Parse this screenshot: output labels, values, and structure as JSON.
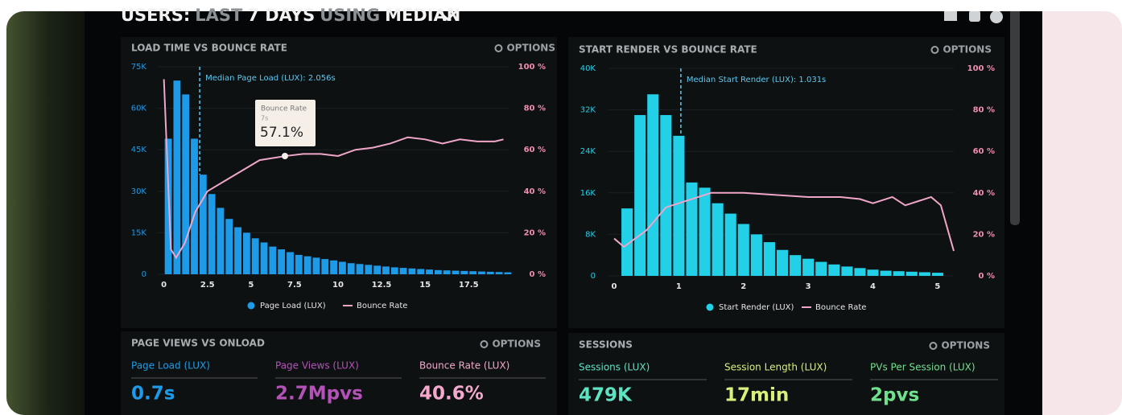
{
  "header": {
    "title": [
      "USERS:",
      "LAST",
      "7 DAYS",
      "USING",
      "MEDIAN"
    ]
  },
  "options": [
    "OPTIONS",
    "OPTIONS",
    "OPTIONS",
    "OPTIONS"
  ],
  "chart_data": [
    {
      "type": "histogram",
      "title": "LOAD TIME VS BOUNCE RATE",
      "bins": [
        0,
        0.5,
        1,
        1.5,
        2,
        2.5,
        3,
        3.5,
        4,
        4.5,
        5,
        5.5,
        6,
        6.5,
        7,
        7.5,
        8,
        8.5,
        9,
        9.5,
        10,
        10.5,
        11,
        11.5,
        12,
        12.5,
        13,
        13.5,
        14,
        14.5,
        15,
        15.5,
        16,
        16.5,
        17,
        17.5,
        18,
        18.5,
        19,
        19.5,
        20
      ],
      "series": [
        {
          "name": "Page Load (LUX)",
          "color": "#1e9be8",
          "values": [
            49000,
            70000,
            65000,
            49000,
            36000,
            29000,
            24000,
            20000,
            17000,
            15000,
            13000,
            11500,
            10000,
            9000,
            8000,
            7000,
            6500,
            6000,
            5500,
            5000,
            4500,
            4000,
            3700,
            3400,
            3100,
            2800,
            2500,
            2300,
            2100,
            1900,
            1700,
            1500,
            1400,
            1300,
            1200,
            1100,
            1000,
            900,
            800,
            700
          ]
        },
        {
          "name": "Bounce Rate",
          "color": "#f0a6c8",
          "axis": "y2",
          "x": [
            0,
            0.4,
            0.7,
            1.2,
            1.8,
            2.5,
            3.5,
            4.5,
            5.5,
            7,
            8,
            9,
            10,
            11,
            12,
            13,
            14,
            15,
            16,
            17,
            18,
            19,
            19.5
          ],
          "values": [
            94,
            12,
            8,
            15,
            30,
            40,
            45,
            50,
            55,
            57,
            58,
            58,
            57,
            60,
            61,
            63,
            66,
            65,
            63,
            65,
            64,
            64,
            65
          ]
        }
      ],
      "xlim": [
        -0.4,
        19.8
      ],
      "xticks": [
        0,
        2.5,
        5,
        7.5,
        10,
        12.5,
        15,
        17.5
      ],
      "ylim": [
        0,
        75000
      ],
      "yticks": [
        {
          "value": 0,
          "label": "0"
        },
        {
          "value": 15000,
          "label": "15K"
        },
        {
          "value": 30000,
          "label": "30K"
        },
        {
          "value": 45000,
          "label": "45K"
        },
        {
          "value": 60000,
          "label": "60K"
        },
        {
          "value": 75000,
          "label": "75K"
        }
      ],
      "y2lim": [
        0,
        100
      ],
      "y2ticks": [
        {
          "value": 0,
          "label": "0 %"
        },
        {
          "value": 20,
          "label": "20 %"
        },
        {
          "value": 40,
          "label": "40 %"
        },
        {
          "value": 60,
          "label": "60 %"
        },
        {
          "value": 80,
          "label": "80 %"
        },
        {
          "value": 100,
          "label": "100 %"
        }
      ],
      "median": 2.056,
      "median_label": "Median Page Load (LUX): 2.056s",
      "tooltip": {
        "title": "Bounce Rate",
        "subtitle": "7s",
        "value": "57.1%"
      }
    },
    {
      "type": "histogram",
      "title": "START RENDER VS BOUNCE RATE",
      "bins": [
        0.1,
        0.3,
        0.5,
        0.7,
        0.9,
        1.1,
        1.3,
        1.5,
        1.7,
        1.9,
        2.1,
        2.3,
        2.5,
        2.7,
        2.9,
        3.1,
        3.3,
        3.5,
        3.7,
        3.9,
        4.1,
        4.3,
        4.5,
        4.7,
        4.9,
        5.1
      ],
      "series": [
        {
          "name": "Start Render (LUX)",
          "color": "#22d0e8",
          "values": [
            13000,
            31000,
            35000,
            31000,
            27000,
            18000,
            17000,
            14000,
            12000,
            10000,
            8000,
            6500,
            5000,
            4000,
            3300,
            2700,
            2200,
            1800,
            1500,
            1200,
            1000,
            900,
            800,
            700,
            600
          ]
        },
        {
          "name": "Bounce Rate",
          "color": "#f0a6c8",
          "axis": "y2",
          "x": [
            0,
            0.15,
            0.5,
            0.8,
            1,
            1.3,
            1.5,
            2,
            2.5,
            3,
            3.5,
            3.8,
            4,
            4.3,
            4.5,
            4.7,
            4.9,
            5.05,
            5.25
          ],
          "values": [
            18,
            14,
            22,
            33,
            35,
            38,
            40,
            40,
            39,
            38,
            38,
            37,
            35,
            38,
            34,
            36,
            38,
            34,
            12
          ]
        }
      ],
      "xlim": [
        -0.1,
        5.25
      ],
      "xticks": [
        0,
        1,
        2,
        3,
        4,
        5
      ],
      "ylim": [
        0,
        40000
      ],
      "yticks": [
        {
          "value": 0,
          "label": "0"
        },
        {
          "value": 8000,
          "label": "8K"
        },
        {
          "value": 16000,
          "label": "16K"
        },
        {
          "value": 24000,
          "label": "24K"
        },
        {
          "value": 32000,
          "label": "32K"
        },
        {
          "value": 40000,
          "label": "40K"
        }
      ],
      "y2lim": [
        0,
        100
      ],
      "y2ticks": [
        {
          "value": 0,
          "label": "0 %"
        },
        {
          "value": 20,
          "label": "20 %"
        },
        {
          "value": 40,
          "label": "40 %"
        },
        {
          "value": 60,
          "label": "60 %"
        },
        {
          "value": 80,
          "label": "80 %"
        },
        {
          "value": 100,
          "label": "100 %"
        }
      ],
      "median": 1.031,
      "median_label": "Median Start Render (LUX): 1.031s"
    }
  ],
  "kpi_panels": [
    {
      "title": "PAGE VIEWS VS ONLOAD",
      "metrics": [
        {
          "label": "Page Load (LUX)",
          "value": "0.7s",
          "color": "#1e9be8"
        },
        {
          "label": "Page Views (LUX)",
          "value": "2.7Mpvs",
          "color": "#b452b8"
        },
        {
          "label": "Bounce Rate (LUX)",
          "value": "40.6%",
          "color": "#f4a8cc"
        }
      ]
    },
    {
      "title": "SESSIONS",
      "metrics": [
        {
          "label": "Sessions (LUX)",
          "value": "479K",
          "color": "#5ee3c2"
        },
        {
          "label": "Session Length (LUX)",
          "value": "17min",
          "color": "#d8f07c"
        },
        {
          "label": "PVs Per Session (LUX)",
          "value": "2pvs",
          "color": "#6fe08c"
        }
      ]
    }
  ]
}
